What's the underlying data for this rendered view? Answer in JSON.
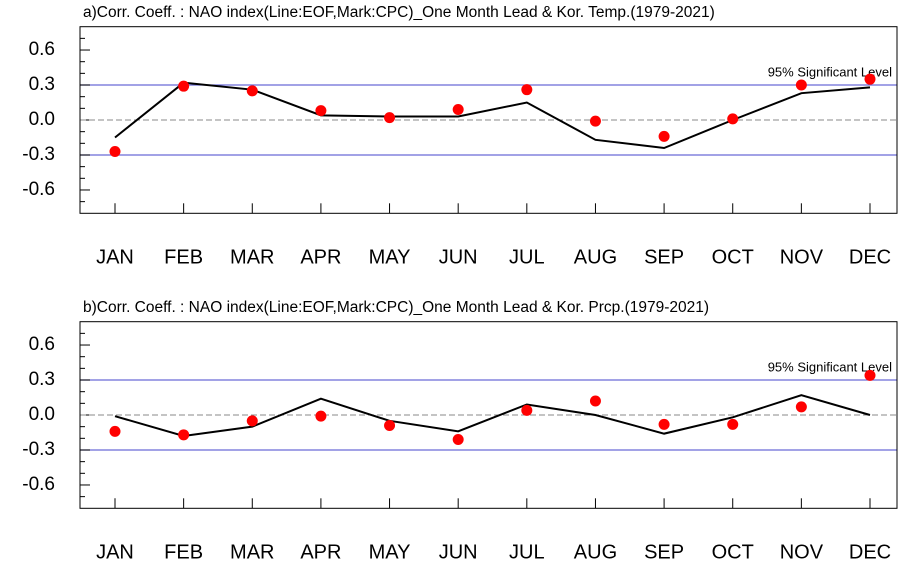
{
  "chart_data": [
    {
      "type": "line",
      "title": "a)Corr. Coeff. : NAO index(Line:EOF,Mark:CPC)_One Month Lead & Kor. Temp.(1979-2021)",
      "categories": [
        "JAN",
        "FEB",
        "MAR",
        "APR",
        "MAY",
        "JUN",
        "JUL",
        "AUG",
        "SEP",
        "OCT",
        "NOV",
        "DEC"
      ],
      "series": [
        {
          "color": "#000000",
          "style": "line",
          "values": [
            -0.15,
            0.32,
            0.26,
            0.04,
            0.03,
            0.03,
            0.15,
            -0.17,
            -0.24,
            0.0,
            0.23,
            0.28
          ]
        },
        {
          "color": "#ff0000",
          "style": "marker",
          "values": [
            -0.27,
            0.29,
            0.25,
            0.08,
            0.02,
            0.09,
            0.26,
            -0.01,
            -0.14,
            0.01,
            0.3,
            0.35
          ]
        }
      ],
      "ylim": [
        -0.8,
        0.8
      ],
      "yticks": [
        -0.6,
        -0.3,
        {
          "value": 0,
          "label": "0.0"
        },
        0.3,
        0.6
      ],
      "yminorticks": [
        -0.7,
        -0.5,
        -0.4,
        -0.2,
        -0.1,
        0.1,
        0.2,
        0.4,
        0.5,
        0.7
      ],
      "reference_lines": [
        0.3,
        -0.3
      ],
      "reference_color": "#6b6bd6",
      "annotation": "95% Significant Level"
    },
    {
      "type": "line",
      "title": "b)Corr. Coeff. : NAO index(Line:EOF,Mark:CPC)_One Month Lead & Kor. Prcp.(1979-2021)",
      "categories": [
        "JAN",
        "FEB",
        "MAR",
        "APR",
        "MAY",
        "JUN",
        "JUL",
        "AUG",
        "SEP",
        "OCT",
        "NOV",
        "DEC"
      ],
      "series": [
        {
          "color": "#000000",
          "style": "line",
          "values": [
            -0.01,
            -0.18,
            -0.1,
            0.14,
            -0.05,
            -0.14,
            0.09,
            0.0,
            -0.16,
            -0.02,
            0.17,
            0.0
          ]
        },
        {
          "color": "#ff0000",
          "style": "marker",
          "values": [
            -0.14,
            -0.17,
            -0.05,
            -0.01,
            -0.09,
            -0.21,
            0.04,
            0.12,
            -0.08,
            -0.08,
            0.07,
            0.34
          ]
        }
      ],
      "ylim": [
        -0.8,
        0.8
      ],
      "yticks": [
        -0.6,
        -0.3,
        {
          "value": 0,
          "label": "0.0"
        },
        0.3,
        0.6
      ],
      "yminorticks": [
        -0.7,
        -0.5,
        -0.4,
        -0.2,
        -0.1,
        0.1,
        0.2,
        0.4,
        0.5,
        0.7
      ],
      "reference_lines": [
        0.3,
        -0.3
      ],
      "reference_color": "#6b6bd6",
      "annotation": "95% Significant Level"
    }
  ]
}
